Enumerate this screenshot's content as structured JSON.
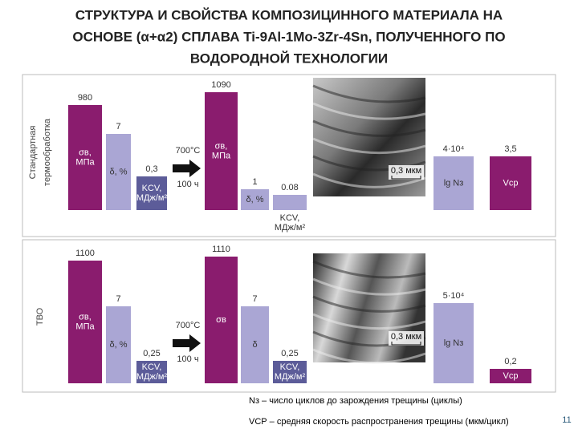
{
  "title": [
    "СТРУКТУРА И СВОЙСТВА КОМПОЗИЦИННОГО МАТЕРИАЛА НА",
    "ОСНОВЕ (α+α2) СПЛАВА Ti-9Al-1Mo-3Zr-4Sn, ПОЛУЧЕННОГО ПО",
    "ВОДОРОДНОЙ ТЕХНОЛОГИИ"
  ],
  "panels": [
    {
      "label": [
        "Стандартная",
        "термообработка"
      ],
      "before": [
        {
          "value": "980",
          "label": [
            "σв,",
            "МПа"
          ]
        },
        {
          "value": "7",
          "label": [
            "δ, %"
          ]
        },
        {
          "value": "0,3",
          "label": [
            "KCV,",
            "МДж/м²"
          ]
        }
      ],
      "treatment": [
        "700°C",
        "100 ч"
      ],
      "after": [
        {
          "value": "1090",
          "label": [
            "σв,",
            "МПа"
          ]
        },
        {
          "value": "1",
          "label": [
            "δ, %"
          ]
        },
        {
          "value": "0.08",
          "label": [
            "KCV,",
            "МДж/м²"
          ]
        }
      ],
      "scale": "0,3 мкм",
      "fatigue": [
        {
          "value": "4·10⁴",
          "label": [
            "lg Nз"
          ]
        },
        {
          "value": "3,5",
          "label": [
            "Vср"
          ]
        }
      ]
    },
    {
      "label": [
        "ТВО"
      ],
      "before": [
        {
          "value": "1100",
          "label": [
            "σв,",
            "МПа"
          ]
        },
        {
          "value": "7",
          "label": [
            "δ, %"
          ]
        },
        {
          "value": "0,25",
          "label": [
            "KCV,",
            "МДж/м²"
          ]
        }
      ],
      "treatment": [
        "700°C",
        "100 ч"
      ],
      "after": [
        {
          "value": "1110",
          "label": [
            "σв"
          ]
        },
        {
          "value": "7",
          "label": [
            "δ"
          ]
        },
        {
          "value": "0,25",
          "label": [
            "KCV,",
            "МДж/м²"
          ]
        }
      ],
      "scale": "0,3 мкм",
      "fatigue": [
        {
          "value": "5·10⁴",
          "label": [
            "lg Nз"
          ]
        },
        {
          "value": "0,2",
          "label": [
            "Vср"
          ]
        }
      ]
    }
  ],
  "notes": [
    "Nз – число циклов до зарождения трещины (циклы)",
    "VСР – средняя скорость распространения трещины (мкм/цикл)"
  ],
  "page": "11"
}
